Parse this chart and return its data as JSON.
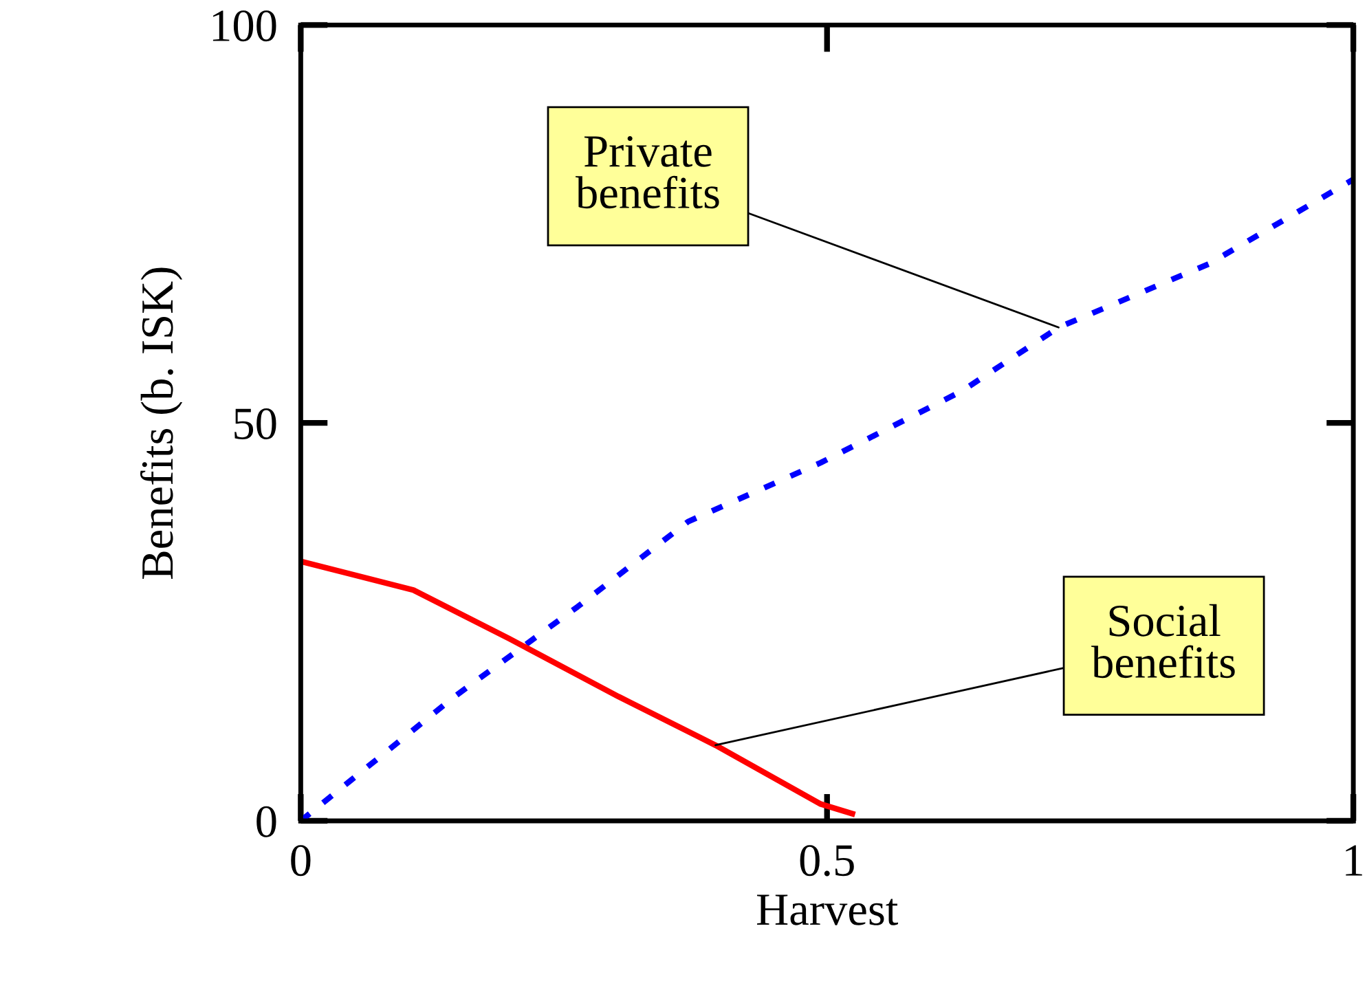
{
  "chart_data": {
    "type": "line",
    "xlabel": "Harvest",
    "ylabel": "Benefits (b. ISK)",
    "xlim": [
      0,
      1
    ],
    "ylim": [
      0,
      100
    ],
    "xticks": [
      0,
      0.5,
      1
    ],
    "yticks": [
      0,
      50,
      100
    ],
    "grid": false,
    "legend": false,
    "series": [
      {
        "color": "#0000ff",
        "line_style": "dashed",
        "x": [
          0,
          0.146,
          0.263,
          0.368,
          0.494,
          0.628,
          0.72,
          0.863,
          1
        ],
        "values": [
          0,
          15.6,
          26.9,
          37.6,
          45,
          54,
          62,
          70,
          80.6
        ]
      },
      {
        "color": "#ff0000",
        "line_style": "solid",
        "x": [
          0,
          0.107,
          0.198,
          0.302,
          0.394,
          0.494,
          0.524
        ],
        "values": [
          32.6,
          29,
          22.9,
          15.6,
          9.5,
          2.1,
          0.9
        ]
      }
    ],
    "annotations": [
      {
        "text": "Private\nbenefits",
        "x": 0.72,
        "y": 62
      },
      {
        "text": "Social\nbenefits",
        "x": 0.394,
        "y": 9.5
      }
    ]
  }
}
